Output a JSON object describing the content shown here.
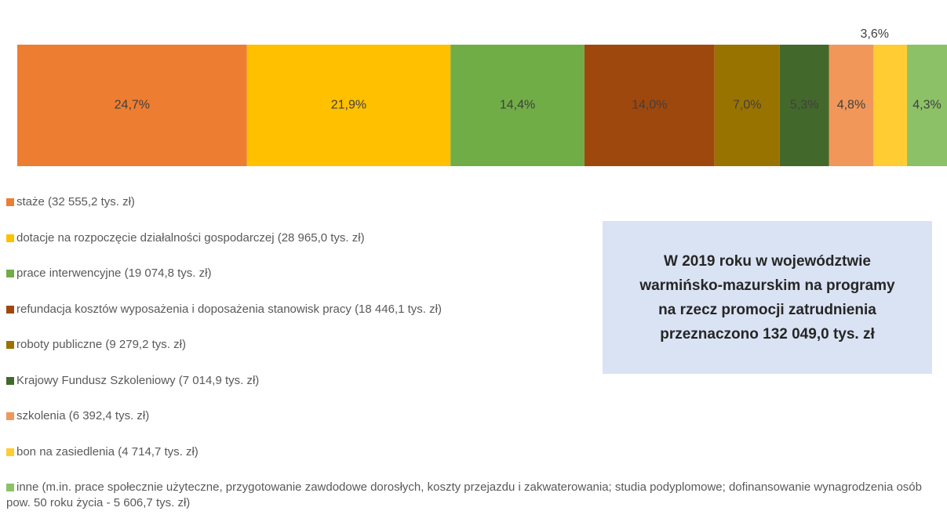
{
  "chart_data": {
    "type": "stacked-bar-100",
    "xlim": [
      0,
      100
    ],
    "series": [
      {
        "name": "staże (32 555,2 tys. zł)",
        "color": "#ed7d31",
        "values": [
          24.7
        ],
        "value_labels": [
          "24,7%"
        ]
      },
      {
        "name": "dotacje na rozpoczęcie działalności gospodarczej (28 965,0 tys. zł)",
        "color": "#ffc000",
        "values": [
          21.9
        ],
        "value_labels": [
          "21,9%"
        ]
      },
      {
        "name": "prace interwencyjne (19 074,8 tys. zł)",
        "color": "#70ad47",
        "values": [
          14.4
        ],
        "value_labels": [
          "14,4%"
        ]
      },
      {
        "name": "refundacja kosztów wyposażenia i doposażenia stanowisk pracy (18 446,1 tys. zł)",
        "color": "#9e480e",
        "values": [
          14.0
        ],
        "value_labels": [
          "14,0%"
        ]
      },
      {
        "name": "roboty publiczne (9 279,2 tys. zł)",
        "color": "#997300",
        "values": [
          7.0
        ],
        "value_labels": [
          "7,0%"
        ]
      },
      {
        "name": "Krajowy Fundusz Szkoleniowy (7 014,9 tys. zł)",
        "color": "#43682b",
        "values": [
          5.3
        ],
        "value_labels": [
          "5,3%"
        ]
      },
      {
        "name": "szkolenia (6 392,4 tys. zł)",
        "color": "#f1975a",
        "values": [
          4.8
        ],
        "value_labels": [
          "4,8%"
        ]
      },
      {
        "name": "bon na zasiedlenia (4 714,7 tys. zł)",
        "color": "#ffcd33",
        "values": [
          3.6
        ],
        "value_labels": [
          "3,6%"
        ]
      },
      {
        "name": "inne (m.in. prace społecznie użyteczne, przygotowanie zawdodowe dorosłych, koszty przejazdu i zakwaterowania; studia podyplomowe; dofinansowanie wynagrodzenia osób pow. 50 roku życia - 5 606,7 tys. zł)",
        "color": "#8cc168",
        "values": [
          4.3
        ],
        "value_labels": [
          "4,3%"
        ]
      }
    ],
    "annotation": "W 2019 roku w województwie warmińsko-mazurskim na programy na rzecz promocji zatrudnienia przeznaczono 132 049,0 tys. zł"
  }
}
